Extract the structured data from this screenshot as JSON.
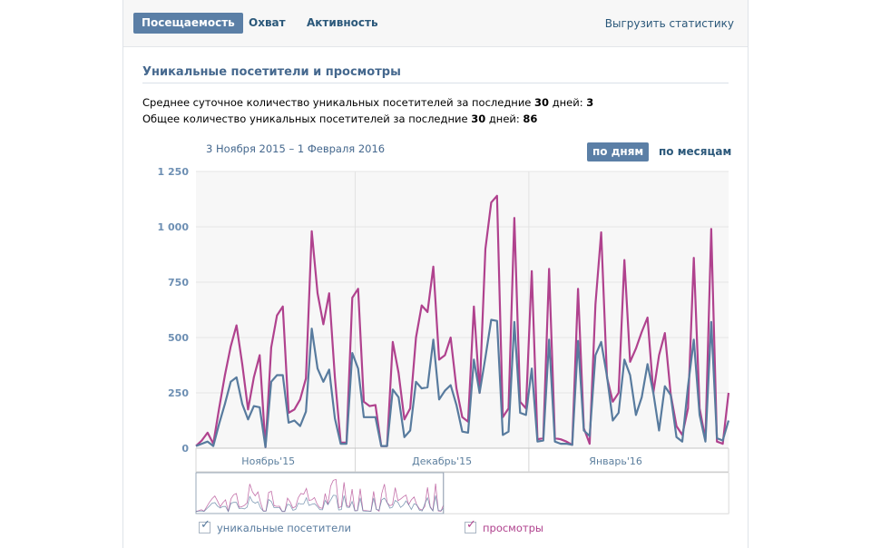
{
  "tabs": [
    {
      "label": "Посещаемость",
      "active": true
    },
    {
      "label": "Охват",
      "active": false
    },
    {
      "label": "Активность",
      "active": false
    }
  ],
  "export_label": "Выгрузить статистику",
  "section_title": "Уникальные посетители и просмотры",
  "stats": {
    "daily_prefix": "Среднее суточное количество уникальных посетителей за последние ",
    "daily_days": "30",
    "daily_mid": " дней: ",
    "daily_value": "3",
    "total_prefix": "Общее количество уникальных посетителей за последние ",
    "total_days": "30",
    "total_mid": " дней: ",
    "total_value": "86"
  },
  "date_range": "3 Ноября 2015 – 1 Февраля 2016",
  "period_buttons": {
    "by_days": "по дням",
    "by_months": "по месяцам"
  },
  "colors": {
    "visitors": "#587b9e",
    "views": "#b0428e",
    "accent": "#5b7fa6",
    "link": "#2b587a"
  },
  "chart_data": {
    "type": "line",
    "ylim": [
      0,
      1250
    ],
    "yticks": [
      "0",
      "250",
      "500",
      "750",
      "1 000",
      "1 250"
    ],
    "month_labels": [
      "Ноябрь'15",
      "Декабрь'15",
      "Январь'16"
    ],
    "series": [
      {
        "name": "уникальные посетители",
        "color": "#587b9e",
        "values": [
          10,
          20,
          30,
          10,
          110,
          200,
          300,
          320,
          200,
          130,
          190,
          185,
          5,
          300,
          330,
          330,
          115,
          125,
          100,
          165,
          540,
          360,
          300,
          355,
          135,
          20,
          20,
          430,
          360,
          140,
          140,
          140,
          10,
          10,
          265,
          230,
          50,
          80,
          300,
          270,
          275,
          490,
          220,
          260,
          285,
          195,
          75,
          70,
          400,
          250,
          410,
          580,
          575,
          60,
          75,
          570,
          160,
          150,
          360,
          30,
          35,
          490,
          30,
          20,
          20,
          15,
          485,
          80,
          55,
          420,
          480,
          325,
          125,
          160,
          400,
          330,
          150,
          230,
          380,
          250,
          80,
          280,
          240,
          50,
          30,
          280,
          490,
          150,
          30,
          570,
          45,
          35,
          125
        ],
        "values_note": ""
      },
      {
        "name": "просмотры",
        "color": "#b0428e",
        "values": [
          10,
          35,
          70,
          20,
          180,
          330,
          460,
          555,
          380,
          175,
          320,
          420,
          5,
          455,
          600,
          640,
          160,
          175,
          220,
          315,
          980,
          700,
          560,
          700,
          320,
          25,
          25,
          680,
          720,
          210,
          190,
          195,
          10,
          10,
          480,
          340,
          130,
          180,
          500,
          645,
          615,
          820,
          400,
          420,
          500,
          270,
          140,
          120,
          640,
          250,
          900,
          1110,
          1140,
          140,
          180,
          1040,
          210,
          180,
          800,
          40,
          45,
          810,
          45,
          40,
          30,
          15,
          720,
          90,
          20,
          650,
          975,
          320,
          210,
          250,
          850,
          390,
          450,
          525,
          590,
          250,
          420,
          520,
          245,
          100,
          60,
          180,
          860,
          180,
          40,
          990,
          30,
          20,
          250
        ]
      }
    ],
    "legend": [
      "уникальные посетители",
      "просмотры"
    ]
  }
}
